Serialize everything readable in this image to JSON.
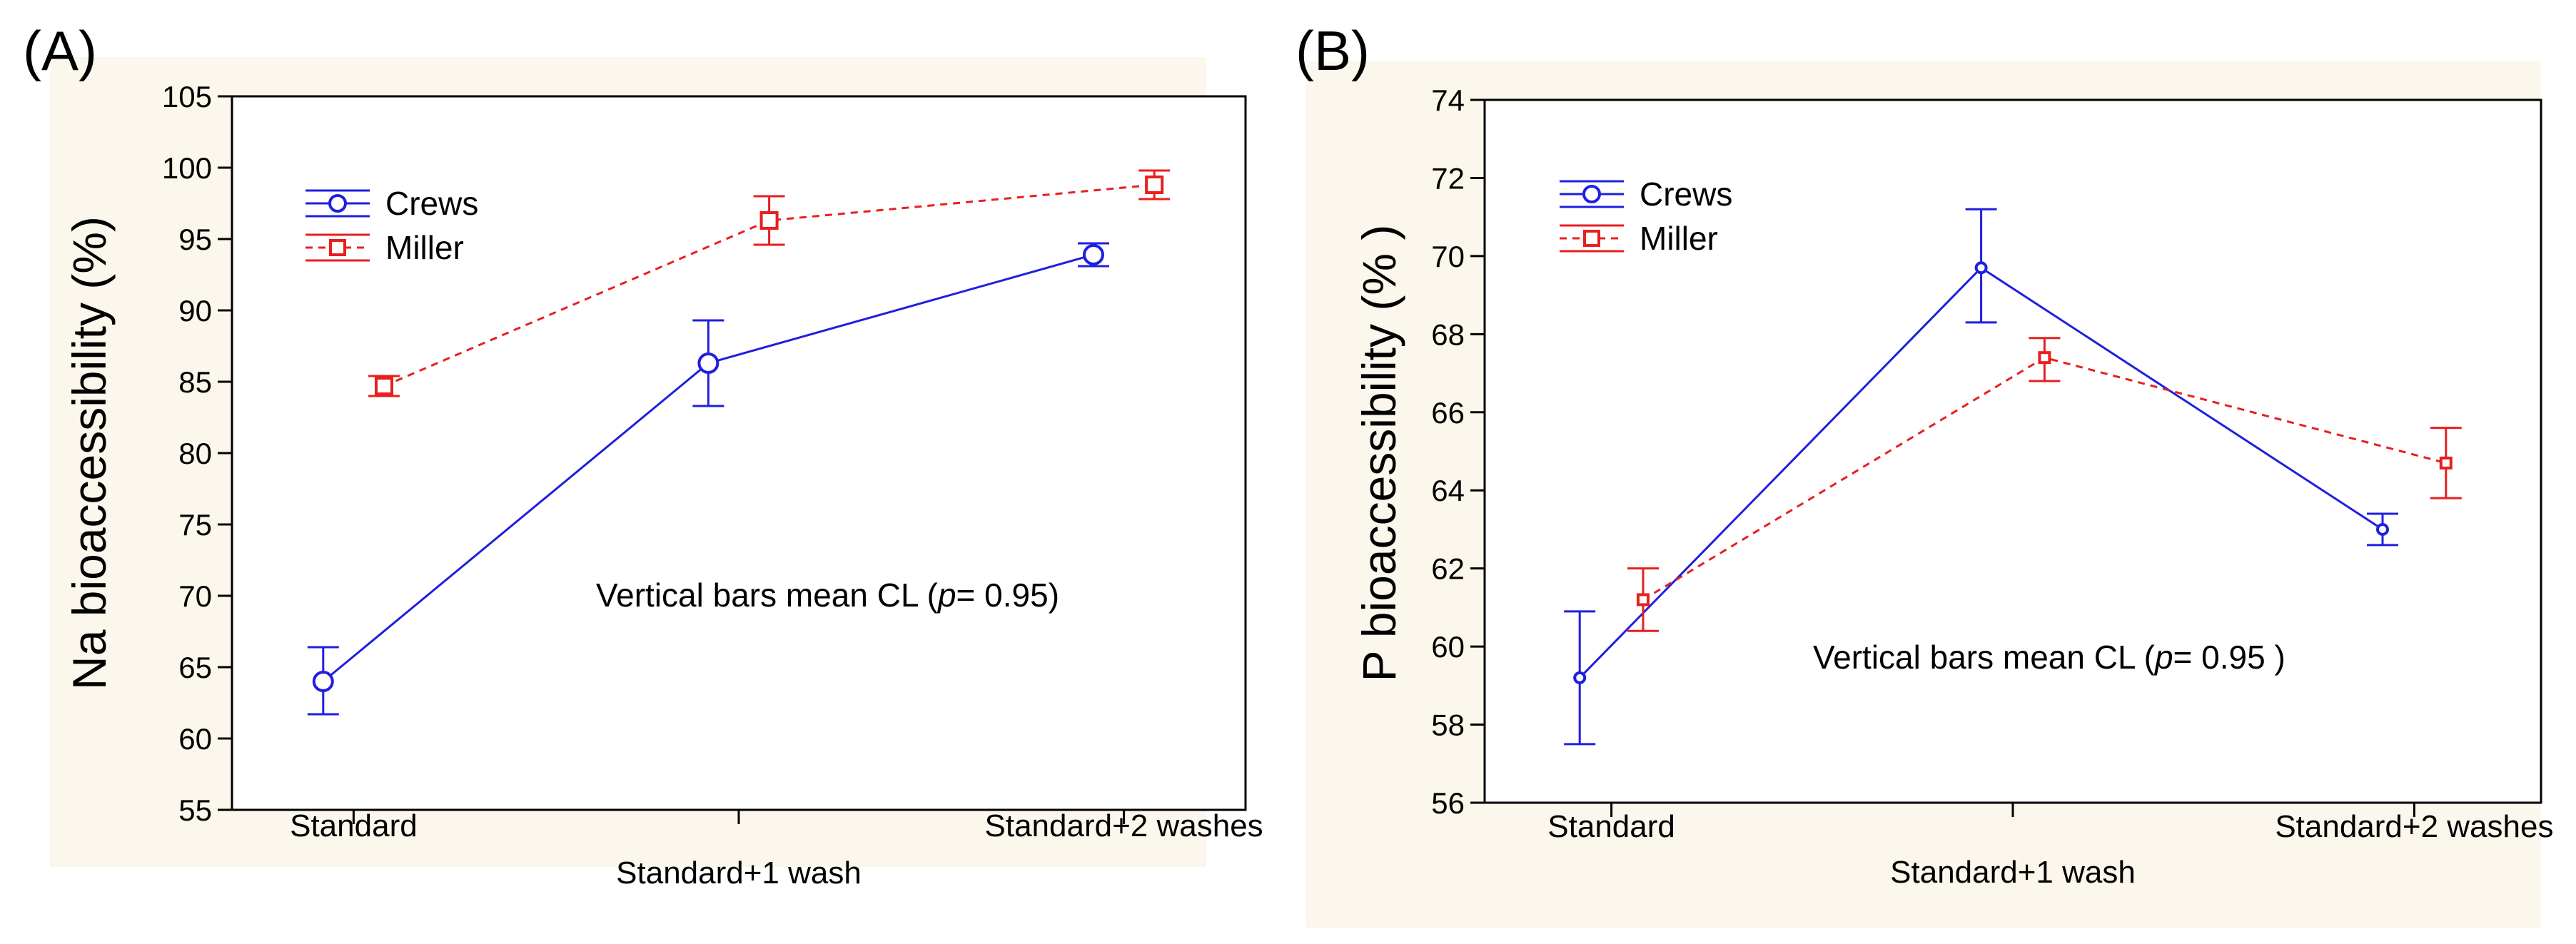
{
  "chart_data": [
    {
      "panel_label": "(A)",
      "type": "line",
      "ylabel": "Na bioaccessibility (%)",
      "ylim": [
        55,
        105
      ],
      "y_ticks": [
        55,
        60,
        65,
        70,
        75,
        80,
        85,
        90,
        95,
        100,
        105
      ],
      "categories": [
        "Standard",
        "Standard+1 wash",
        "Standard+2 washes"
      ],
      "annotation": {
        "prefix": "Vertical bars mean CL (",
        "p": "p",
        "suffix": "= 0.95)"
      },
      "series": [
        {
          "name": "Crews",
          "color": "#1f1fe0",
          "marker": "circle",
          "style": "solid",
          "values": [
            64.0,
            86.3,
            93.9
          ],
          "ci_low": [
            61.7,
            83.3,
            93.1
          ],
          "ci_high": [
            66.4,
            89.3,
            94.7
          ]
        },
        {
          "name": "Miller",
          "color": "#e81f1f",
          "marker": "square",
          "style": "dashed",
          "values": [
            84.7,
            96.3,
            98.8
          ],
          "ci_low": [
            84.0,
            94.6,
            97.8
          ],
          "ci_high": [
            85.4,
            98.0,
            99.8
          ]
        }
      ]
    },
    {
      "panel_label": "(B)",
      "type": "line",
      "ylabel": "P bioaccessibility (% )",
      "ylim": [
        56,
        74
      ],
      "y_ticks": [
        56,
        58,
        60,
        62,
        64,
        66,
        68,
        70,
        72,
        74
      ],
      "categories": [
        "Standard",
        "Standard+1 wash",
        "Standard+2 washes"
      ],
      "annotation": {
        "prefix": "Vertical bars mean CL (",
        "p": "p",
        "suffix": "= 0.95 )"
      },
      "series": [
        {
          "name": "Crews",
          "color": "#1f1fe0",
          "marker": "circle",
          "style": "solid",
          "values": [
            59.2,
            69.7,
            63.0
          ],
          "ci_low": [
            57.5,
            68.3,
            62.6
          ],
          "ci_high": [
            60.9,
            71.2,
            63.4
          ]
        },
        {
          "name": "Miller",
          "color": "#e81f1f",
          "marker": "square",
          "style": "dashed",
          "values": [
            61.2,
            67.4,
            64.7
          ],
          "ci_low": [
            60.4,
            66.8,
            63.8
          ],
          "ci_high": [
            62.0,
            67.9,
            65.6
          ]
        }
      ]
    }
  ]
}
